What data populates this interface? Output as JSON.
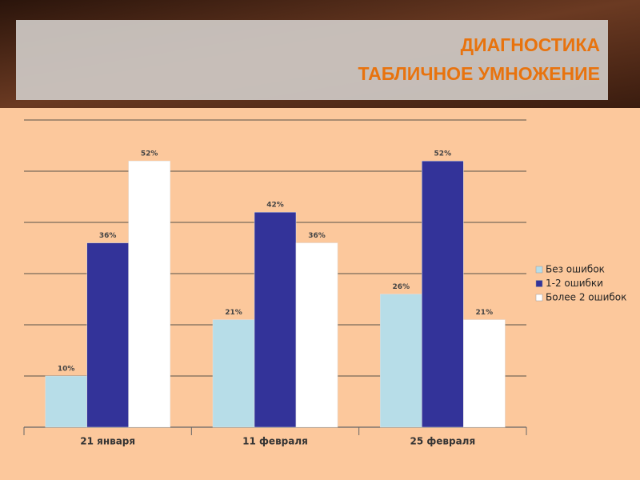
{
  "chart_data": {
    "type": "bar",
    "title": "ДИАГНОСТИКА",
    "subtitle": "ТАБЛИЧНОЕ УМНОЖЕНИЕ",
    "categories": [
      "21 января",
      "11 февраля",
      "25 февраля"
    ],
    "series": [
      {
        "name": "Без ошибок",
        "color": "#b7dde8",
        "values": [
          10,
          21,
          26
        ],
        "value_labels": [
          "10%",
          "21%",
          "26%"
        ]
      },
      {
        "name": "1-2 ошибки",
        "color": "#333399",
        "values": [
          36,
          42,
          52
        ],
        "value_labels": [
          "36%",
          "42%",
          "52%"
        ]
      },
      {
        "name": "Более 2 ошибок",
        "color": "#ffffff",
        "values": [
          52,
          36,
          21
        ],
        "value_labels": [
          "52%",
          "36%",
          "21%"
        ]
      }
    ],
    "ylim": [
      0,
      60
    ],
    "yticks": [
      0,
      10,
      20,
      30,
      40,
      50,
      60
    ],
    "grid": true,
    "legend": "right"
  }
}
